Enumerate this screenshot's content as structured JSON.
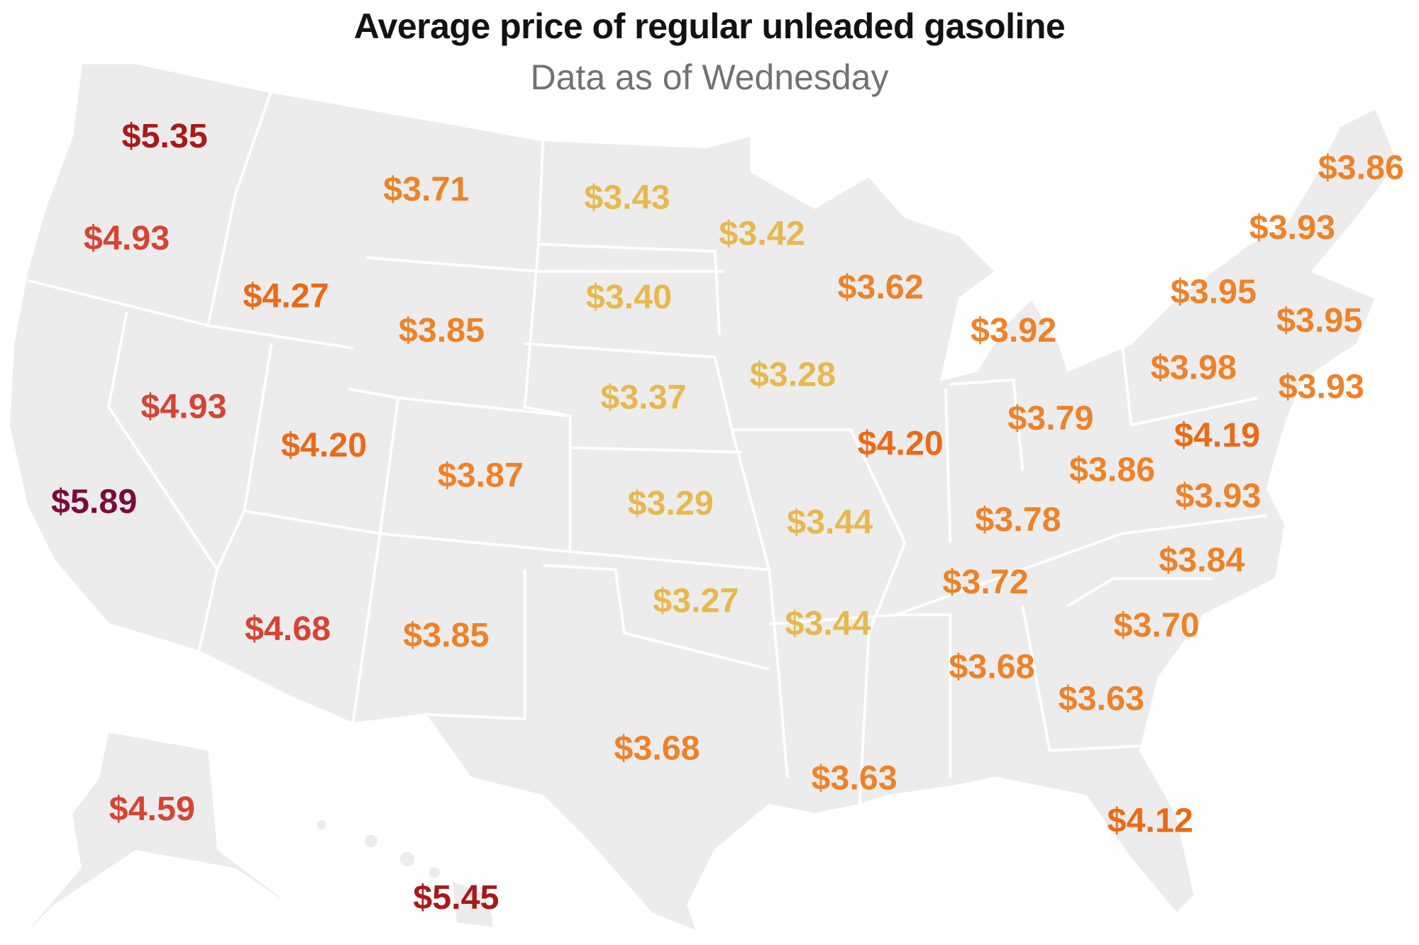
{
  "title": "Average price of regular unleaded gasoline",
  "subtitle": "Data as of Wednesday",
  "colors": {
    "land": "#ececec",
    "border": "#ffffff",
    "tier_5_5_plus": "#7a0c3c",
    "tier_5_00_5_49": "#a81a1a",
    "tier_4_50_4_99": "#d64433",
    "tier_4_00_4_49": "#eb6a17",
    "tier_3_50_3_99": "#ee8228",
    "tier_below_3_50": "#e8b84e"
  },
  "prices": [
    {
      "state": "WA",
      "label": "$5.35"
    },
    {
      "state": "OR",
      "label": "$4.93"
    },
    {
      "state": "CA",
      "label": "$5.89"
    },
    {
      "state": "NV",
      "label": "$4.93"
    },
    {
      "state": "ID",
      "label": "$4.27"
    },
    {
      "state": "MT",
      "label": "$3.71"
    },
    {
      "state": "WY",
      "label": "$3.85"
    },
    {
      "state": "UT",
      "label": "$4.20"
    },
    {
      "state": "AZ",
      "label": "$4.68"
    },
    {
      "state": "CO",
      "label": "$3.87"
    },
    {
      "state": "NM",
      "label": "$3.85"
    },
    {
      "state": "ND",
      "label": "$3.43"
    },
    {
      "state": "SD",
      "label": "$3.40"
    },
    {
      "state": "NE",
      "label": "$3.37"
    },
    {
      "state": "KS",
      "label": "$3.29"
    },
    {
      "state": "OK",
      "label": "$3.27"
    },
    {
      "state": "TX",
      "label": "$3.68"
    },
    {
      "state": "MN",
      "label": "$3.42"
    },
    {
      "state": "IA",
      "label": "$3.28"
    },
    {
      "state": "MO",
      "label": "$3.44"
    },
    {
      "state": "AR",
      "label": "$3.44"
    },
    {
      "state": "LA",
      "label": "$3.63"
    },
    {
      "state": "WI",
      "label": "$3.62"
    },
    {
      "state": "IL",
      "label": "$4.20"
    },
    {
      "state": "MI",
      "label": "$3.92"
    },
    {
      "state": "IN",
      "label": "$3.79"
    },
    {
      "state": "OH",
      "label": "$3.86"
    },
    {
      "state": "KY",
      "label": "$3.78"
    },
    {
      "state": "TN",
      "label": "$3.72"
    },
    {
      "state": "AL",
      "label": "$3.68"
    },
    {
      "state": "GA",
      "label": "$3.63"
    },
    {
      "state": "FL",
      "label": "$4.12"
    },
    {
      "state": "SC",
      "label": "$3.70"
    },
    {
      "state": "NC",
      "label": "$3.84"
    },
    {
      "state": "VA",
      "label": "$3.93"
    },
    {
      "state": "MD",
      "label": "$4.19"
    },
    {
      "state": "PA",
      "label": "$3.98"
    },
    {
      "state": "NY",
      "label": "$3.95"
    },
    {
      "state": "NJ",
      "label": "$3.93"
    },
    {
      "state": "MA",
      "label": "$3.95"
    },
    {
      "state": "NH",
      "label": "$3.93"
    },
    {
      "state": "ME",
      "label": "$3.86"
    },
    {
      "state": "AK",
      "label": "$4.59"
    },
    {
      "state": "HI",
      "label": "$5.45"
    }
  ]
}
